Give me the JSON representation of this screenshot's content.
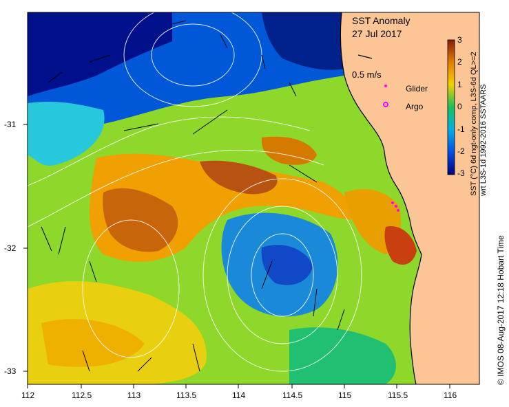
{
  "map": {
    "title": "SST Anomaly",
    "date": "27 Jul 2017",
    "scale_label": "0.5 m/s",
    "legend": {
      "glider": "Glider",
      "argo": "Argo"
    },
    "x_ticks": [
      "112",
      "112.5",
      "113",
      "113.5",
      "114",
      "114.5",
      "115",
      "115.5",
      "116"
    ],
    "y_ticks": [
      "-31",
      "-32",
      "-33"
    ],
    "colorbar": {
      "ticks": [
        "3",
        "2",
        "1",
        "0",
        "-1",
        "-2",
        "-3"
      ],
      "label_line1": "SST (°C) 6d ngt-only comp, L3S-6d QL>=2",
      "label_line2": "wrt L3S-1d 1992-2016 SSTAARS"
    },
    "credit": "© IMOS 08-Aug-2017 12:18 Hobart Time",
    "colors": {
      "land": "#fcc596",
      "cold_deep": "#000080",
      "cold": "#0050e6",
      "cool": "#00b0e6",
      "neutral": "#16c05b",
      "mild": "#a8ea1c",
      "warm": "#f4d000",
      "hot": "#e07a00",
      "very_hot": "#8a1a00",
      "glider": "#ff00ff",
      "argo": "#ff00ff"
    }
  }
}
